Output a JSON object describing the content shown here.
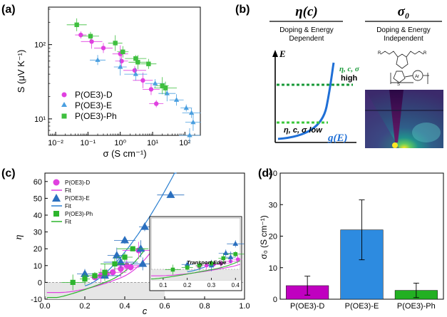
{
  "chart_data": [
    {
      "panel": "(a)",
      "type": "scatter",
      "xscale": "log",
      "yscale": "log",
      "xlabel": "σ (S cm⁻¹)",
      "ylabel": "S (μV K⁻¹)",
      "xlim": [
        0.006,
        300
      ],
      "ylim": [
        6,
        320
      ],
      "xticks": [
        0.01,
        0.1,
        1,
        10,
        100
      ],
      "xtick_labels": [
        "10⁻²",
        "10⁻¹",
        "10⁰",
        "10¹",
        "10²"
      ],
      "yticks": [
        10,
        100
      ],
      "ytick_labels": [
        "10¹",
        "10²"
      ],
      "legend_position": "bottom-left",
      "series": [
        {
          "name": "P(OE3)-D",
          "marker": "circle",
          "color": "#e040e0",
          "x": [
            0.06,
            0.13,
            0.3,
            1.0,
            1.1,
            2.8,
            5.0,
            9.0,
            13.0
          ],
          "y": [
            135,
            110,
            90,
            75,
            60,
            45,
            33,
            25,
            16
          ]
        },
        {
          "name": "P(OE3)-E",
          "marker": "triangle",
          "color": "#4a9fe0",
          "x": [
            0.2,
            1.0,
            3.0,
            12.0,
            28.0,
            55.0,
            110.0,
            140.0,
            160.0,
            180.0
          ],
          "y": [
            62,
            50,
            40,
            30,
            22,
            18,
            14,
            6,
            12,
            9
          ]
        },
        {
          "name": "P(OE3)-Ph",
          "marker": "square",
          "color": "#3fbf3f",
          "x": [
            0.045,
            0.12,
            0.7,
            1.2,
            3.0,
            3.5,
            7.5,
            20.0,
            25.0
          ],
          "y": [
            185,
            130,
            105,
            80,
            65,
            58,
            55,
            28,
            26
          ]
        }
      ]
    },
    {
      "panel": "(b)",
      "type": "diagram",
      "left_title": "η(c)",
      "left_subtitle_1": "Doping & Energy",
      "left_subtitle_2": "Dependent",
      "right_title": "σ₀",
      "right_subtitle_1": "Doping & Energy",
      "right_subtitle_2": "Independent",
      "axis_label": "E",
      "high_label_1": "η, c, σ",
      "high_label_2": "high",
      "low_label": "η, c, σ low",
      "curve_label": "g(E)",
      "molecule_label_r1": "R",
      "molecule_label_r2": "R",
      "molecule_ring": "S",
      "molecule_group": "Ar"
    },
    {
      "panel": "(c)",
      "type": "scatter",
      "xlabel": "c",
      "ylabel": "η",
      "xlim": [
        0.0,
        1.0
      ],
      "ylim": [
        -10,
        65
      ],
      "xticks": [
        0.0,
        0.2,
        0.4,
        0.6,
        0.8,
        1.0
      ],
      "yticks": [
        -10,
        0,
        10,
        20,
        30,
        40,
        50,
        60
      ],
      "legend_position": "top-left",
      "legend": [
        "P(OE3)-D",
        "Fit",
        "P(OE3)-E",
        "Fit",
        "P(OE3)-Ph",
        "Fit"
      ],
      "series": [
        {
          "name": "P(OE3)-D",
          "marker": "circle",
          "color": "#e040e0",
          "x": [
            0.25,
            0.28,
            0.31,
            0.34,
            0.38,
            0.41,
            0.43,
            0.47
          ],
          "y": [
            3,
            4,
            5,
            6,
            8,
            10,
            9,
            19
          ]
        },
        {
          "name": "P(OE3)-E",
          "marker": "triangle",
          "color": "#2a6fbf",
          "x": [
            0.2,
            0.3,
            0.36,
            0.38,
            0.4,
            0.48,
            0.49,
            0.5,
            0.63
          ],
          "y": [
            5,
            4,
            16,
            12,
            25,
            20,
            11,
            33,
            52
          ]
        },
        {
          "name": "P(OE3)-Ph",
          "marker": "square",
          "color": "#2db52d",
          "x": [
            0.14,
            0.2,
            0.25,
            0.3,
            0.35,
            0.4,
            0.44
          ],
          "y": [
            0,
            2,
            4,
            6,
            11,
            15,
            20
          ]
        }
      ],
      "fits": [
        {
          "name": "Fit",
          "color": "#e040e0",
          "note": "fit to P(OE3)-D"
        },
        {
          "name": "Fit",
          "color": "#2a7fd0",
          "note": "fit to P(OE3)-E"
        },
        {
          "name": "Fit",
          "color": "#2db52d",
          "note": "fit to P(OE3)-Ph"
        }
      ],
      "inset": {
        "xlim": [
          0.05,
          0.42
        ],
        "ylim": [
          -10,
          50
        ],
        "xticks": [
          0.1,
          0.2,
          0.3,
          0.4
        ],
        "xtick_labels": [
          "0.1",
          "0.2",
          "0.3",
          "0.4"
        ],
        "annotation": "Transport Edge"
      }
    },
    {
      "panel": "(d)",
      "type": "bar",
      "ylabel": "σ₀ (S cm⁻¹)",
      "ylim": [
        0,
        40
      ],
      "yticks": [
        0,
        10,
        20,
        30,
        40
      ],
      "categories": [
        "P(OE3)-D",
        "P(OE3)-E",
        "P(OE3)-Ph"
      ],
      "values": [
        4.3,
        22.0,
        2.8
      ],
      "errors": [
        3.0,
        9.5,
        2.3
      ],
      "colors": [
        "#c000c0",
        "#2d8be0",
        "#22b022"
      ]
    }
  ]
}
